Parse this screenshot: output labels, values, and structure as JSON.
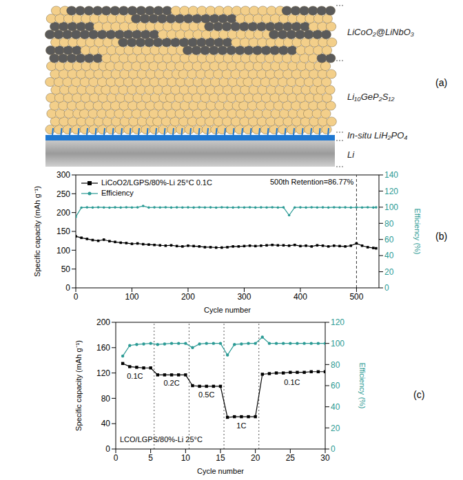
{
  "diagram": {
    "panel_label": "(a)",
    "layers": [
      "LiCoO₂@LiNbO₃",
      "Li₁₀GeP₂S₁₂",
      "In-situ LiH₂PO₄",
      "Li"
    ]
  },
  "chart_data": [
    {
      "type": "line",
      "panel_label": "(b)",
      "x_label": "Cycle number",
      "y_label": "Specific capacity (mAh g⁻¹)",
      "y2_label": "Efficiency (%)",
      "x": [
        0,
        10,
        20,
        30,
        40,
        50,
        60,
        70,
        80,
        90,
        100,
        110,
        120,
        130,
        140,
        150,
        160,
        170,
        180,
        190,
        200,
        210,
        220,
        230,
        240,
        250,
        260,
        270,
        280,
        290,
        300,
        310,
        320,
        330,
        340,
        350,
        360,
        370,
        380,
        390,
        400,
        410,
        420,
        430,
        440,
        450,
        460,
        470,
        480,
        490,
        500,
        510,
        520,
        530,
        535
      ],
      "xlim": [
        0,
        540
      ],
      "xticks": [
        0,
        100,
        200,
        300,
        400,
        500
      ],
      "ylim": [
        0,
        300
      ],
      "yticks": [
        0,
        50,
        100,
        150,
        200,
        250,
        300
      ],
      "y2lim": [
        0,
        140
      ],
      "y2ticks": [
        0,
        20,
        40,
        60,
        80,
        100,
        120,
        140
      ],
      "legend": "upper left",
      "annotations": [
        {
          "text": "500th Retention=86.77%",
          "x": 500
        }
      ],
      "series": [
        {
          "name": "LiCoO2/LGPS/80%-Li 25°C 0.1C",
          "color": "#000000",
          "marker": "square",
          "values": [
            137,
            133,
            130,
            127,
            125,
            128,
            124,
            122,
            120,
            119,
            117,
            118,
            116,
            115,
            114,
            113,
            112,
            113,
            111,
            110,
            112,
            111,
            110,
            108,
            108,
            107,
            107,
            108,
            110,
            110,
            111,
            112,
            111,
            112,
            113,
            114,
            113,
            113,
            112,
            114,
            111,
            112,
            110,
            113,
            112,
            110,
            112,
            111,
            110,
            112,
            118,
            112,
            108,
            106,
            105
          ]
        },
        {
          "name": "Efficiency",
          "color": "#2a9a94",
          "marker": "circle",
          "axis": "y2",
          "values": [
            88,
            99.5,
            99.8,
            99.6,
            99.9,
            99.7,
            99.5,
            99.8,
            99.6,
            99.9,
            99.7,
            99.8,
            101.5,
            99.6,
            99.8,
            99.7,
            99.9,
            99.6,
            99.8,
            99.7,
            99.8,
            99.6,
            99.9,
            99.7,
            99.8,
            99.5,
            99.9,
            99.7,
            99.6,
            99.8,
            99.7,
            99.9,
            99.6,
            99.8,
            99.7,
            99.9,
            99.6,
            99.8,
            90,
            99.7,
            99.8,
            99.6,
            99.9,
            99.7,
            99.8,
            99.6,
            99.9,
            99.7,
            99.8,
            99.6,
            99.8,
            99.7,
            99.9,
            99.6,
            99.8
          ]
        }
      ]
    },
    {
      "type": "line",
      "panel_label": "(c)",
      "x_label": "Cycle number",
      "y_label": "Specific capacity (mAh g⁻¹)",
      "y2_label": "Efficiency (%)",
      "x": [
        1,
        2,
        3,
        4,
        5,
        6,
        7,
        8,
        9,
        10,
        11,
        12,
        13,
        14,
        15,
        16,
        17,
        18,
        19,
        20,
        21,
        22,
        23,
        24,
        25,
        26,
        27,
        28,
        29,
        30
      ],
      "xlim": [
        0,
        30
      ],
      "xticks": [
        0,
        5,
        10,
        15,
        20,
        25,
        30
      ],
      "ylim": [
        0,
        200
      ],
      "yticks": [
        0,
        40,
        80,
        120,
        160,
        200
      ],
      "y2lim": [
        0,
        120
      ],
      "y2ticks": [
        0,
        20,
        40,
        60,
        80,
        100,
        120
      ],
      "dividers": [
        5.5,
        10.5,
        15.5,
        20.5
      ],
      "rate_labels": [
        "0.1C",
        "0.2C",
        "0.5C",
        "1C",
        "0.1C"
      ],
      "annotations": [
        {
          "text": "LCO/LGPS/80%-Li 25°C"
        }
      ],
      "series": [
        {
          "name": "Specific capacity",
          "color": "#000000",
          "marker": "square",
          "values": [
            135,
            130,
            129,
            128,
            128,
            117,
            117,
            117,
            117,
            117,
            100,
            99,
            99,
            99,
            99,
            50,
            51,
            51,
            51,
            51,
            118,
            119,
            120,
            120,
            121,
            121,
            121,
            122,
            122,
            122
          ]
        },
        {
          "name": "Efficiency",
          "color": "#2a9a94",
          "marker": "circle",
          "axis": "y2",
          "values": [
            88,
            98,
            99,
            99.5,
            100,
            99,
            99.5,
            100,
            100,
            100,
            96,
            99.5,
            100,
            100,
            100,
            89,
            99,
            99.5,
            100,
            100,
            106,
            100,
            100,
            100,
            100,
            100,
            100,
            100,
            100,
            100
          ]
        }
      ]
    }
  ]
}
